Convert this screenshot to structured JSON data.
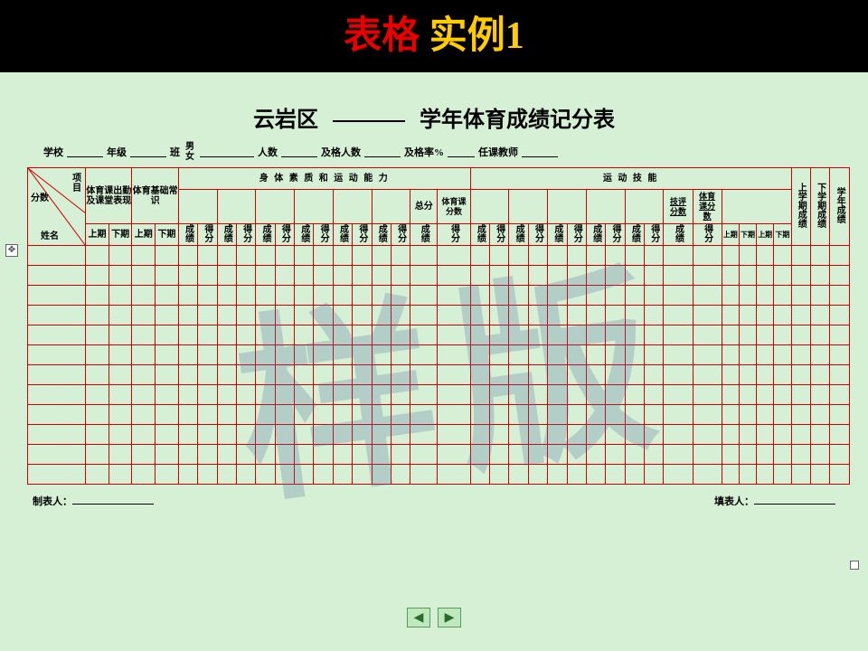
{
  "slide": {
    "title_red": "表格",
    "title_yellow": "  实例1",
    "bg": "#d5f0d5",
    "border_color": "#d40000"
  },
  "doc": {
    "title_left": "云岩区",
    "title_right": "学年体育成绩记分表",
    "watermark": "样版",
    "meta": {
      "school": "学校",
      "grade": "年级",
      "class": "班",
      "male": "男",
      "female": "女",
      "count": "人数",
      "pass_count": "及格人数",
      "pass_rate": "及格率%",
      "teacher": "任课教师"
    },
    "footer": {
      "maker": "制表人：",
      "filler": "填表人："
    }
  },
  "table": {
    "diag": {
      "item": "项",
      "score": "分数",
      "name": "姓名",
      "mu": "目"
    },
    "group1": "体育课出勤及课堂表现",
    "group2": "体育基础常识",
    "group3": "身 体 素 质 和 运 动 能 力",
    "group4": "运 动 技 能",
    "total": "总分",
    "pe_score": "体育课分数",
    "tech_score": "技评分数",
    "pe_class_score": "体育课分数2",
    "sem1": "上学期成绩",
    "sem2": "下学期成绩",
    "year": "学年成绩",
    "period_up": "上期",
    "period_down": "下期",
    "cj": "成绩",
    "df": "得分",
    "empty_rows": 12
  },
  "nav": {
    "prev": "◀",
    "next": "▶"
  }
}
